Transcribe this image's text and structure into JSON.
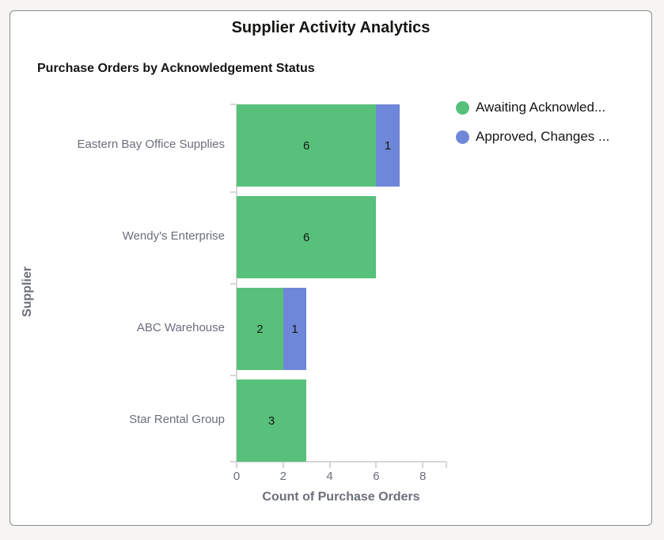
{
  "card": {
    "title": "Supplier Activity Analytics"
  },
  "chart_data": {
    "type": "bar",
    "orientation": "horizontal",
    "stacked": true,
    "title": "Purchase Orders by Acknowledgement Status",
    "xlabel": "Count of Purchase Orders",
    "ylabel": "Supplier",
    "categories": [
      "Eastern Bay Office Supplies",
      "Wendy's Enterprise",
      "ABC Warehouse",
      "Star Rental Group"
    ],
    "series": [
      {
        "name": "Awaiting Acknowled...",
        "color": "#57c17b",
        "values": [
          6,
          6,
          2,
          3
        ]
      },
      {
        "name": "Approved, Changes ...",
        "color": "#6f87d8",
        "values": [
          1,
          0,
          1,
          0
        ]
      }
    ],
    "xlim": [
      0,
      9
    ],
    "xticks": [
      0,
      2,
      4,
      6,
      8
    ],
    "grid": false,
    "legend_position": "right-top",
    "data_labels": true
  },
  "legend": [
    {
      "label": "Awaiting Acknowled...",
      "color": "#57c17b"
    },
    {
      "label": "Approved, Changes ...",
      "color": "#6f87d8"
    }
  ]
}
